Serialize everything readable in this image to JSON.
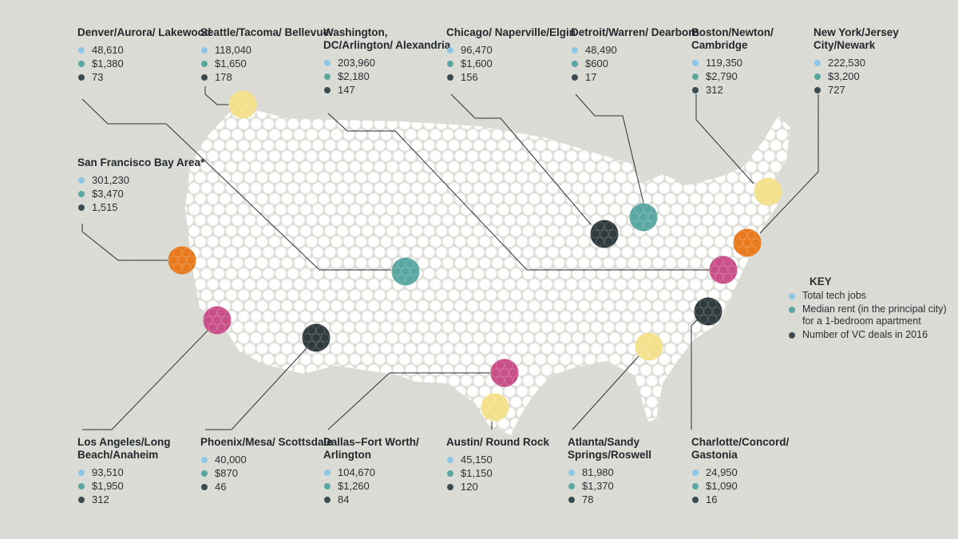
{
  "colors": {
    "jobs": "#8ec7e6",
    "rent": "#5aa6a0",
    "vc": "#3b4b4f",
    "pink": "#c94f88",
    "orange": "#e8791c",
    "yellow": "#f3e08a",
    "teal": "#5aa6a0",
    "dark": "#2f3b3e",
    "hex": "#ffffff"
  },
  "key": {
    "title": "KEY",
    "items": [
      {
        "label": "Total tech jobs"
      },
      {
        "label": "Median rent (in the principal city) for a 1-bedroom apartment"
      },
      {
        "label": "Number of VC deals in 2016"
      }
    ]
  },
  "metros": [
    {
      "name": "Denver/Aurora/ Lakewood",
      "jobs": "48,610",
      "rent": "$1,380",
      "vc": "73",
      "marker": "teal"
    },
    {
      "name": "Seattle/Tacoma/ Bellevue",
      "jobs": "118,040",
      "rent": "$1,650",
      "vc": "178",
      "marker": "yellow"
    },
    {
      "name": "Washington, DC/Arlington/ Alexandria",
      "jobs": "203,960",
      "rent": "$2,180",
      "vc": "147",
      "marker": "pink"
    },
    {
      "name": "Chicago/ Naperville/Elgin",
      "jobs": "96,470",
      "rent": "$1,600",
      "vc": "156",
      "marker": "dark"
    },
    {
      "name": "Detroit/Warren/ Dearborn",
      "jobs": "48,490",
      "rent": "$600",
      "vc": "17",
      "marker": "teal"
    },
    {
      "name": "Boston/Newton/ Cambridge",
      "jobs": "119,350",
      "rent": "$2,790",
      "vc": "312",
      "marker": "yellow"
    },
    {
      "name": "New York/Jersey City/Newark",
      "jobs": "222,530",
      "rent": "$3,200",
      "vc": "727",
      "marker": "orange"
    },
    {
      "name": "San Francisco Bay Area*",
      "jobs": "301,230",
      "rent": "$3,470",
      "vc": "1,515",
      "marker": "orange"
    },
    {
      "name": "Los Angeles/Long Beach/Anaheim",
      "jobs": "93,510",
      "rent": "$1,950",
      "vc": "312",
      "marker": "pink"
    },
    {
      "name": "Phoenix/Mesa/ Scottsdale",
      "jobs": "40,000",
      "rent": "$870",
      "vc": "46",
      "marker": "dark"
    },
    {
      "name": "Dallas–Fort Worth/ Arlington",
      "jobs": "104,670",
      "rent": "$1,260",
      "vc": "84",
      "marker": "pink"
    },
    {
      "name": "Austin/ Round Rock",
      "jobs": "45,150",
      "rent": "$1,150",
      "vc": "120",
      "marker": "yellow"
    },
    {
      "name": "Atlanta/Sandy Springs/Roswell",
      "jobs": "81,980",
      "rent": "$1,370",
      "vc": "78",
      "marker": "yellow"
    },
    {
      "name": "Charlotte/Concord/ Gastonia",
      "jobs": "24,950",
      "rent": "$1,090",
      "vc": "16",
      "marker": "dark"
    }
  ]
}
